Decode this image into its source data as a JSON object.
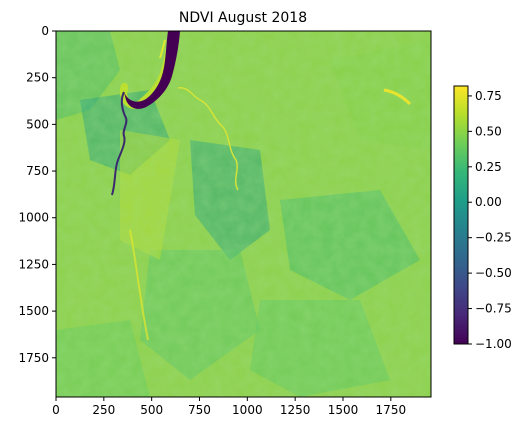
{
  "figure": {
    "title": "NDVI August 2018"
  },
  "image": {
    "description_type": "satellite-ndvi-raster",
    "x_range": [
      0,
      1960
    ],
    "y_range": [
      0,
      1960
    ]
  },
  "axes": {
    "x_ticks": [
      {
        "value": 0,
        "label": "0"
      },
      {
        "value": 250,
        "label": "250"
      },
      {
        "value": 500,
        "label": "500"
      },
      {
        "value": 750,
        "label": "750"
      },
      {
        "value": 1000,
        "label": "1000"
      },
      {
        "value": 1250,
        "label": "1250"
      },
      {
        "value": 1500,
        "label": "1500"
      },
      {
        "value": 1750,
        "label": "1750"
      }
    ],
    "y_ticks": [
      {
        "value": 0,
        "label": "0"
      },
      {
        "value": 250,
        "label": "250"
      },
      {
        "value": 500,
        "label": "500"
      },
      {
        "value": 750,
        "label": "750"
      },
      {
        "value": 1000,
        "label": "1000"
      },
      {
        "value": 1250,
        "label": "1250"
      },
      {
        "value": 1500,
        "label": "1500"
      },
      {
        "value": 1750,
        "label": "1750"
      }
    ]
  },
  "colorbar": {
    "colormap": "viridis",
    "vmin": -1.0,
    "vmax": 0.82,
    "ticks": [
      {
        "value": 0.75,
        "label": "0.75"
      },
      {
        "value": 0.5,
        "label": "0.50"
      },
      {
        "value": 0.25,
        "label": "0.25"
      },
      {
        "value": 0.0,
        "label": "0.00"
      },
      {
        "value": -0.25,
        "label": "−0.25"
      },
      {
        "value": -0.5,
        "label": "−0.50"
      },
      {
        "value": -0.75,
        "label": "−0.75"
      },
      {
        "value": -1.0,
        "label": "−1.00"
      }
    ],
    "stops": [
      "#440154",
      "#482878",
      "#3e4989",
      "#31688e",
      "#26828e",
      "#1f9e89",
      "#35b779",
      "#6ece58",
      "#b5de2b",
      "#fde725"
    ]
  }
}
